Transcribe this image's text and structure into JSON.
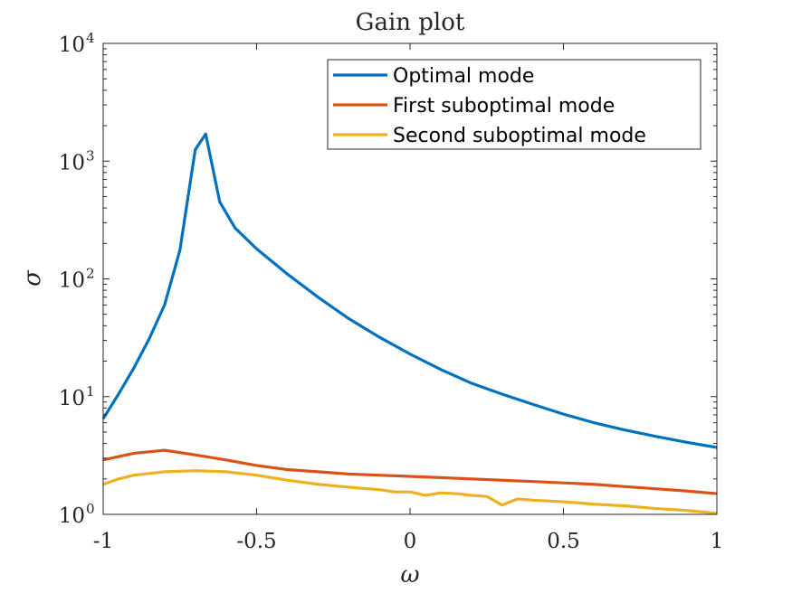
{
  "chart_data": {
    "type": "line",
    "title": "Gain plot",
    "xlabel": "ω",
    "ylabel": "σ",
    "xlim": [
      -1,
      1
    ],
    "ylim": [
      1,
      10000
    ],
    "yscale": "log",
    "grid": false,
    "legend_position": "top-right",
    "xticks": [
      -1,
      -0.5,
      0,
      0.5,
      1
    ],
    "xtick_labels": [
      "-1",
      "-0.5",
      "0",
      "0.5",
      "1"
    ],
    "yticks": [
      1,
      10,
      100,
      1000,
      10000
    ],
    "ytick_labels": [
      {
        "base": "10",
        "exp": "0"
      },
      {
        "base": "10",
        "exp": "1"
      },
      {
        "base": "10",
        "exp": "2"
      },
      {
        "base": "10",
        "exp": "3"
      },
      {
        "base": "10",
        "exp": "4"
      }
    ],
    "series": [
      {
        "name": "Optimal mode",
        "color": "#0072BD",
        "x": [
          -1,
          -0.95,
          -0.9,
          -0.85,
          -0.8,
          -0.75,
          -0.7,
          -0.666,
          -0.62,
          -0.57,
          -0.5,
          -0.4,
          -0.3,
          -0.2,
          -0.1,
          0,
          0.1,
          0.2,
          0.3,
          0.4,
          0.5,
          0.6,
          0.7,
          0.8,
          0.9,
          1
        ],
        "y": [
          6.5,
          10.5,
          17.5,
          31,
          60,
          175,
          1250,
          1700,
          450,
          270,
          180,
          110,
          70,
          46,
          32,
          23,
          17,
          13,
          10.5,
          8.6,
          7.1,
          6.0,
          5.2,
          4.6,
          4.1,
          3.7
        ]
      },
      {
        "name": "First suboptimal mode",
        "color": "#D95319",
        "x": [
          -1,
          -0.9,
          -0.8,
          -0.7,
          -0.6,
          -0.5,
          -0.4,
          -0.3,
          -0.2,
          -0.1,
          0,
          0.1,
          0.2,
          0.3,
          0.4,
          0.5,
          0.6,
          0.7,
          0.8,
          0.9,
          1
        ],
        "y": [
          2.9,
          3.3,
          3.5,
          3.2,
          2.9,
          2.6,
          2.4,
          2.3,
          2.2,
          2.15,
          2.1,
          2.05,
          2.0,
          1.95,
          1.9,
          1.85,
          1.8,
          1.72,
          1.65,
          1.58,
          1.5
        ]
      },
      {
        "name": "Second suboptimal mode",
        "color": "#EDB120",
        "x": [
          -1,
          -0.95,
          -0.9,
          -0.8,
          -0.7,
          -0.6,
          -0.5,
          -0.4,
          -0.3,
          -0.2,
          -0.1,
          -0.05,
          0,
          0.05,
          0.1,
          0.15,
          0.2,
          0.25,
          0.3,
          0.35,
          0.4,
          0.5,
          0.6,
          0.7,
          0.8,
          0.9,
          1
        ],
        "y": [
          1.8,
          2.0,
          2.15,
          2.3,
          2.35,
          2.3,
          2.15,
          1.95,
          1.8,
          1.7,
          1.62,
          1.55,
          1.55,
          1.45,
          1.52,
          1.5,
          1.45,
          1.42,
          1.2,
          1.35,
          1.32,
          1.28,
          1.22,
          1.18,
          1.12,
          1.08,
          1.02
        ]
      }
    ]
  }
}
